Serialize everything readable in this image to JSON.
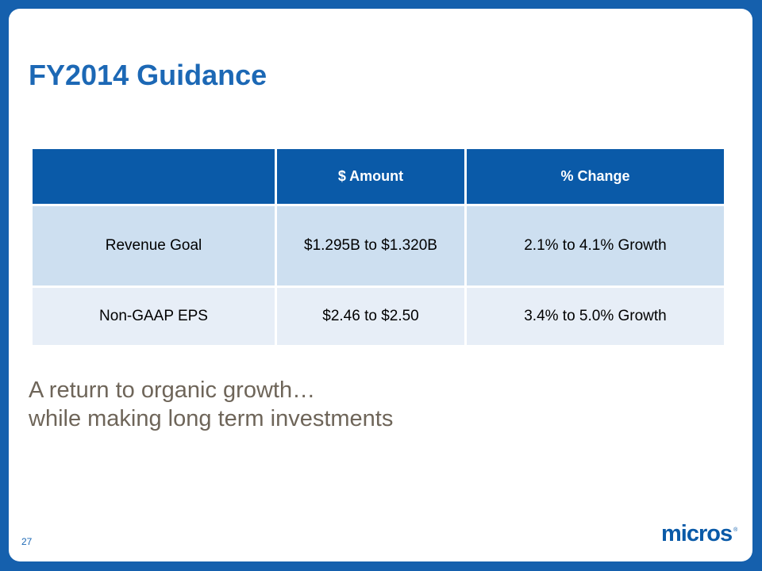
{
  "slide": {
    "title": "FY2014 Guidance",
    "table": {
      "headers": [
        "",
        "$ Amount",
        "% Change"
      ],
      "rows": [
        [
          "Revenue Goal",
          "$1.295B to $1.320B",
          "2.1% to 4.1% Growth"
        ],
        [
          "Non-GAAP EPS",
          "$2.46 to $2.50",
          "3.4% to 5.0% Growth"
        ]
      ]
    },
    "tagline": {
      "line1": "A return to organic growth…",
      "line2": "while making long term investments"
    },
    "page_number": "27",
    "logo": {
      "text": "micros",
      "mark": "®"
    }
  },
  "colors": {
    "frame": "#1560ad",
    "title": "#1c68b5",
    "header_fill": "#0a5aa8",
    "row_fill_1": "#cddff0",
    "row_fill_2": "#e7eef7",
    "tagline": "#6e6559"
  }
}
